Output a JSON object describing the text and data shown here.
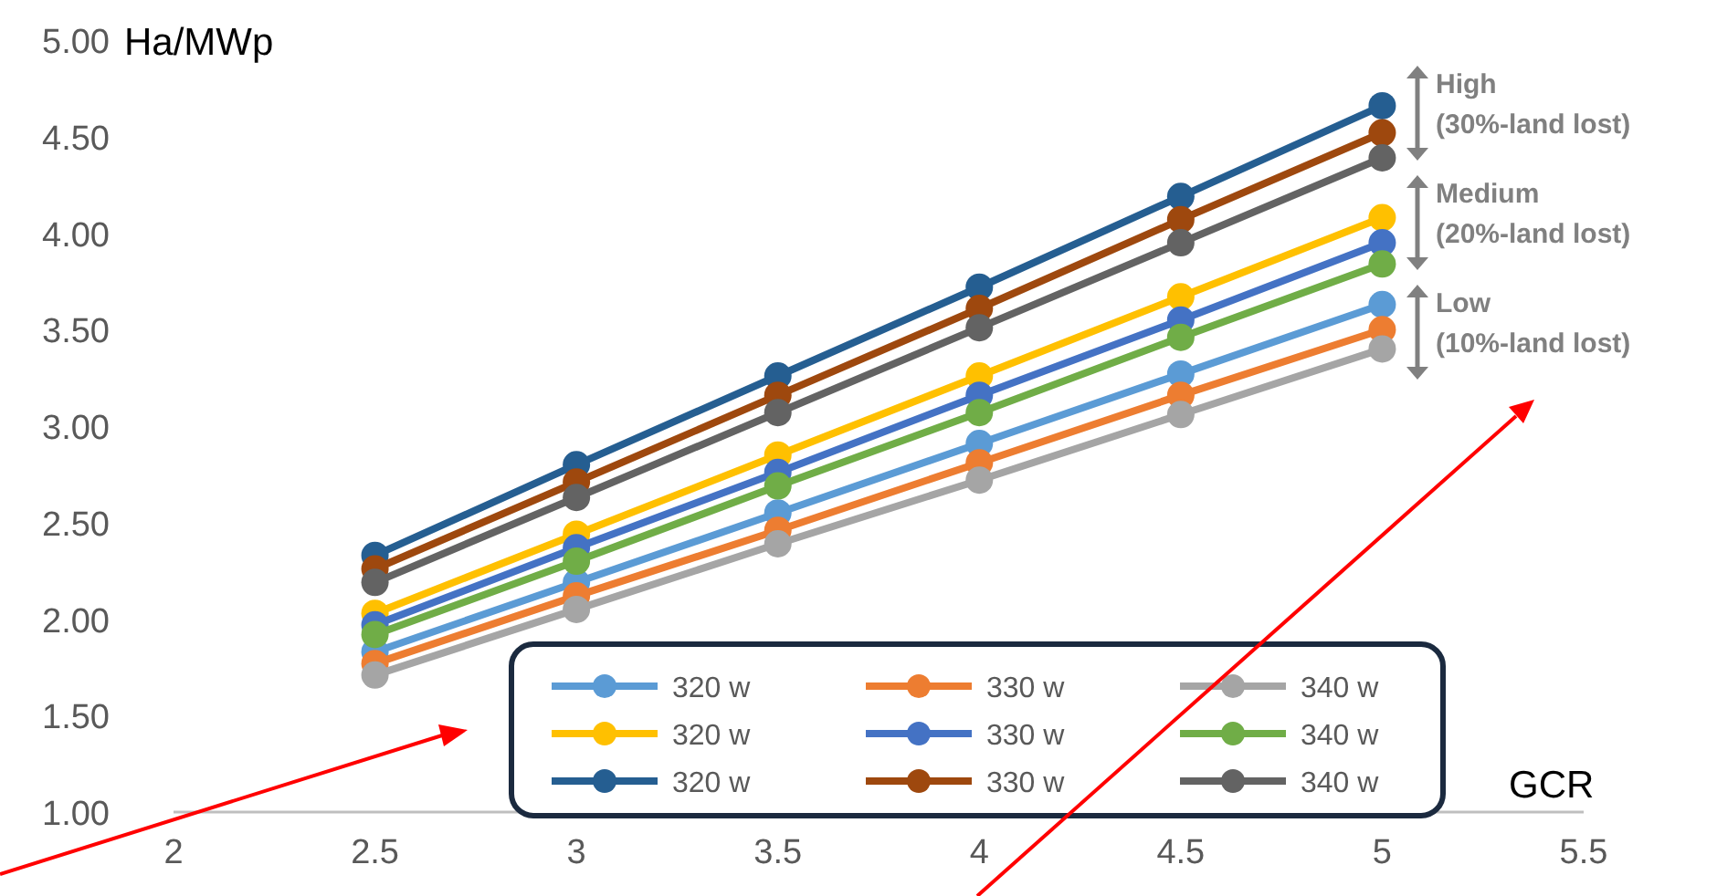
{
  "chart_data": {
    "type": "line",
    "xlabel": "GCR",
    "ylabel": "Ha/MWp",
    "x": [
      2.5,
      3,
      3.5,
      4,
      4.5,
      5
    ],
    "xlim": [
      2,
      5.5
    ],
    "xticks": [
      2,
      2.5,
      3,
      3.5,
      4,
      4.5,
      5,
      5.5
    ],
    "ylim": [
      1,
      5
    ],
    "yticks": [
      {
        "value": 1,
        "label": "1.00"
      },
      {
        "value": 1.5,
        "label": "1.50"
      },
      {
        "value": 2,
        "label": "2.00"
      },
      {
        "value": 2.5,
        "label": "2.50"
      },
      {
        "value": 3,
        "label": "3.00"
      },
      {
        "value": 3.5,
        "label": "3.50"
      },
      {
        "value": 4,
        "label": "4.00"
      },
      {
        "value": 4.5,
        "label": "4.50"
      },
      {
        "value": 5,
        "label": "5.00"
      }
    ],
    "series": [
      {
        "name": "320 w",
        "color": "#5b9bd5",
        "values": [
          1.83,
          2.19,
          2.55,
          2.91,
          3.27,
          3.63
        ]
      },
      {
        "name": "330 w",
        "color": "#ed7d31",
        "values": [
          1.77,
          2.12,
          2.46,
          2.81,
          3.16,
          3.5
        ]
      },
      {
        "name": "340 w",
        "color": "#a5a5a5",
        "values": [
          1.71,
          2.05,
          2.39,
          2.72,
          3.06,
          3.4
        ]
      },
      {
        "name": "320 w",
        "color": "#ffc000",
        "values": [
          2.03,
          2.44,
          2.85,
          3.26,
          3.67,
          4.08
        ]
      },
      {
        "name": "330 w",
        "color": "#4472c4",
        "values": [
          1.97,
          2.37,
          2.76,
          3.16,
          3.55,
          3.95
        ]
      },
      {
        "name": "340 w",
        "color": "#70ad47",
        "values": [
          1.92,
          2.3,
          2.69,
          3.07,
          3.46,
          3.84
        ]
      },
      {
        "name": "320 w",
        "color": "#255e91",
        "values": [
          2.33,
          2.8,
          3.26,
          3.72,
          4.19,
          4.66
        ]
      },
      {
        "name": "330 w",
        "color": "#9e480e",
        "values": [
          2.26,
          2.71,
          3.16,
          3.61,
          4.07,
          4.52
        ]
      },
      {
        "name": "340 w",
        "color": "#636363",
        "values": [
          2.19,
          2.63,
          3.07,
          3.51,
          3.95,
          4.39
        ]
      }
    ],
    "annotations": [
      "High\n(30%-land lost)",
      "Medium\n(20%-land lost)",
      "Low\n(10%-land lost)"
    ],
    "legend": "bottom",
    "marker": "circle",
    "line_style": "solid",
    "grid": false
  }
}
